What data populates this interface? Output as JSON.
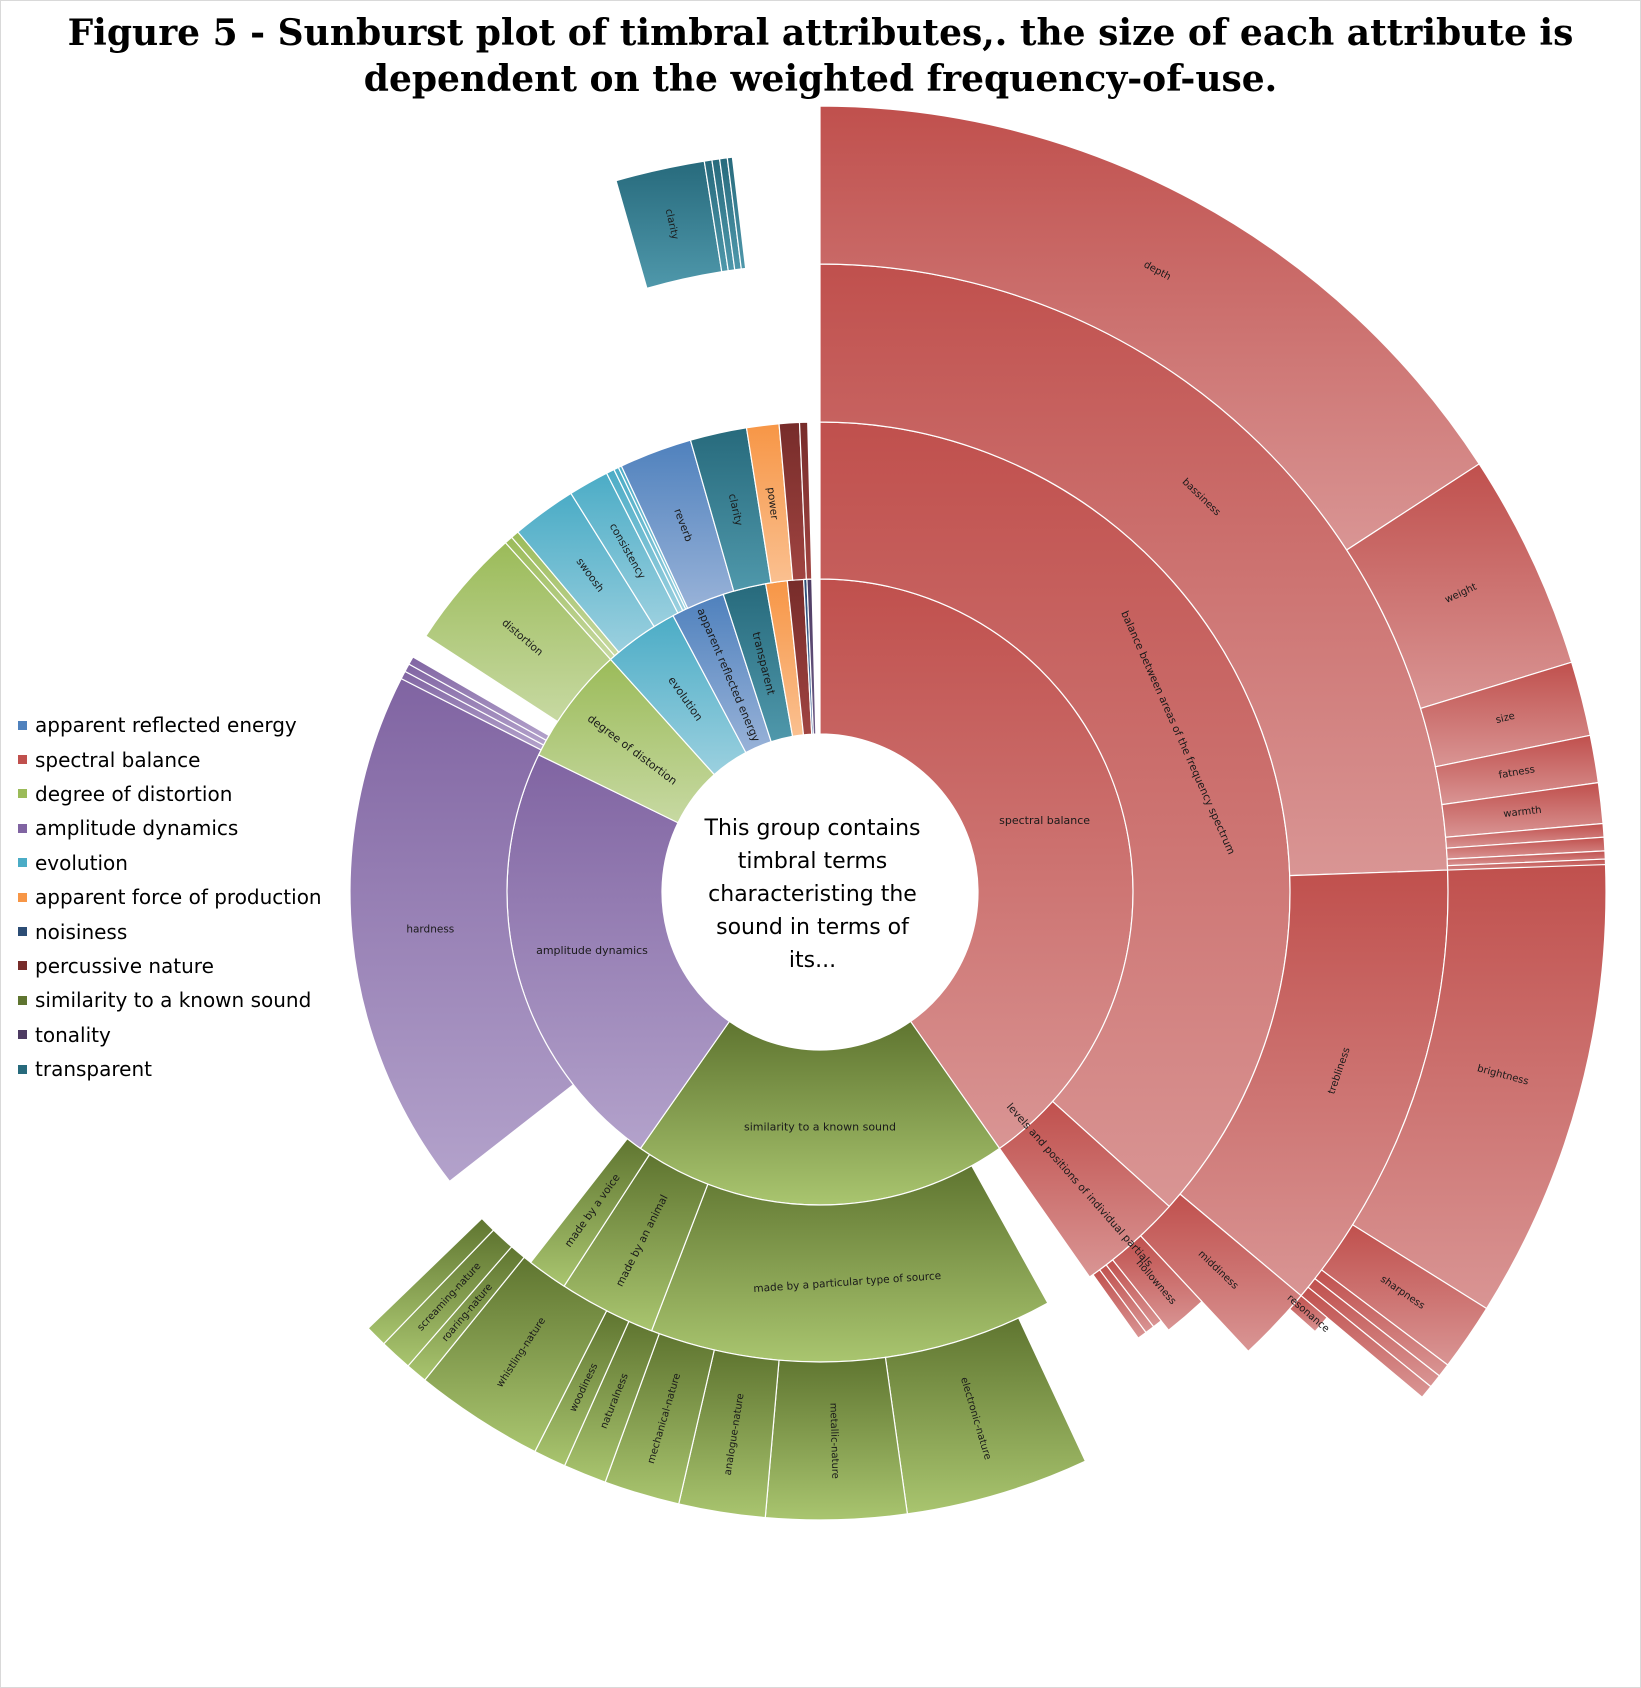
{
  "title": "Figure 5 - Sunburst plot of  timbral attributes,.  the size of each attribute is dependent on the weighted frequency-of-use.",
  "center_text": "This group contains timbral terms characteristing the sound in terms of its...",
  "legend": [
    {
      "label": "apparent reflected energy",
      "color": "#4f81bd"
    },
    {
      "label": "spectral balance",
      "color": "#c0504d"
    },
    {
      "label": "degree of distortion",
      "color": "#9bbb59"
    },
    {
      "label": "amplitude dynamics",
      "color": "#8064a2"
    },
    {
      "label": "evolution",
      "color": "#4bacc6"
    },
    {
      "label": "apparent force of production",
      "color": "#f79646"
    },
    {
      "label": "noisiness",
      "color": "#2c4d75"
    },
    {
      "label": "percussive nature",
      "color": "#772c2a"
    },
    {
      "label": "similarity to a known sound",
      "color": "#5f7530"
    },
    {
      "label": "tonality",
      "color": "#4d3b62"
    },
    {
      "label": "transparent",
      "color": "#276a7c"
    }
  ],
  "chart_data": {
    "type": "sunburst",
    "title": "Figure 5 - Sunburst plot of  timbral attributes,.  the size of each attribute is dependent on the weighted frequency-of-use.",
    "center_label": "This group contains timbral terms characteristing the sound in terms of its...",
    "legend_position": "left",
    "segments": [
      {
        "level": 1,
        "label": "spectral balance",
        "color": "#c0504d",
        "value": 42.4
      },
      {
        "level": 2,
        "label": "balance between areas of the frequency spectrum",
        "parent": "spectral balance",
        "color": "#c0504d",
        "value": 38.9
      },
      {
        "level": 3,
        "label": "bassiness",
        "parent": "balance between areas of the frequency spectrum",
        "color": "#c0504d",
        "value": 25.2
      },
      {
        "level": 4,
        "label": "depth",
        "parent": "bassiness",
        "color": "#c0504d",
        "value": 17.1
      },
      {
        "level": 4,
        "label": "weight",
        "parent": "bassiness",
        "color": "#c0504d",
        "value": 3.7
      },
      {
        "level": 4,
        "label": "size",
        "parent": "bassiness",
        "color": "#c0504d",
        "value": 1.5
      },
      {
        "level": 4,
        "label": "fatness",
        "parent": "bassiness",
        "color": "#c0504d",
        "value": 0.8
      },
      {
        "level": 4,
        "label": "warmth",
        "parent": "bassiness",
        "color": "#c0504d",
        "value": 0.7
      },
      {
        "level": 4,
        "label": "",
        "parent": "bassiness",
        "color": "#c0504d",
        "value": 0.3
      },
      {
        "level": 4,
        "label": "",
        "parent": "bassiness",
        "color": "#c0504d",
        "value": 0.3
      },
      {
        "level": 4,
        "label": "",
        "parent": "bassiness",
        "color": "#c0504d",
        "value": 0.3
      },
      {
        "level": 4,
        "label": "",
        "parent": "bassiness",
        "color": "#c0504d",
        "value": 0.5
      },
      {
        "level": 3,
        "label": "trebliness",
        "parent": "balance between areas of the frequency spectrum",
        "color": "#c0504d",
        "value": 13.7
      },
      {
        "level": 4,
        "label": "brightness",
        "parent": "trebliness",
        "color": "#c0504d",
        "value": 11.2
      },
      {
        "level": 4,
        "label": "sharpness",
        "parent": "trebliness",
        "color": "#c0504d",
        "value": 1.3
      },
      {
        "level": 4,
        "label": "",
        "parent": "trebliness",
        "color": "#c0504d",
        "value": 0.3
      },
      {
        "level": 4,
        "label": "",
        "parent": "trebliness",
        "color": "#c0504d",
        "value": 0.3
      },
      {
        "level": 4,
        "label": "",
        "parent": "trebliness",
        "color": "#c0504d",
        "value": 0.3
      },
      {
        "level": 4,
        "label": "resonance",
        "parent": "trebliness",
        "color": "#c0504d",
        "value": 0.3
      },
      {
        "level": 3,
        "label": "middiness",
        "parent": "balance between areas of the frequency spectrum",
        "color": "#c0504d",
        "value": 1.6
      },
      {
        "level": 3,
        "label": "hollowness",
        "parent": "balance between areas of the frequency spectrum",
        "color": "#c0504d",
        "value": 1.4
      },
      {
        "level": 3,
        "label": "",
        "parent": "balance between areas of the frequency spectrum",
        "color": "#c0504d",
        "value": 0.3
      },
      {
        "level": 3,
        "label": "",
        "parent": "balance between areas of the frequency spectrum",
        "color": "#c0504d",
        "value": 0.3
      },
      {
        "level": 3,
        "label": "",
        "parent": "balance between areas of the frequency spectrum",
        "color": "#c0504d",
        "value": 0.2
      },
      {
        "level": 2,
        "label": "levels and positions of individual partials",
        "parent": "spectral balance",
        "color": "#c0504d",
        "value": 3.5
      },
      {
        "level": 1,
        "label": "similarity to a known sound",
        "parent": null,
        "color": "#5f7530",
        "value": 15.3
      },
      {
        "level": 2,
        "label": "made by a particular type of source",
        "parent": "similarity to a known sound",
        "color": "#5f7530",
        "value": 11.9
      },
      {
        "level": 3,
        "label": "electronic-nature",
        "parent": "made by a particular type of source",
        "color": "#5f7530",
        "value": 4.7
      },
      {
        "level": 3,
        "label": "metallic-nature",
        "parent": "made by a particular type of source",
        "color": "#5f7530",
        "value": 2.7
      },
      {
        "level": 3,
        "label": "analogue-nature",
        "parent": "made by a particular type of source",
        "color": "#5f7530",
        "value": 1.9
      },
      {
        "level": 3,
        "label": "mechanical-nature",
        "parent": "made by a particular type of source",
        "color": "#5f7530",
        "value": 1.3
      },
      {
        "level": 3,
        "label": "naturalness",
        "parent": "made by a particular type of source",
        "color": "#5f7530",
        "value": 0.8
      },
      {
        "level": 3,
        "label": "woodiness",
        "parent": "made by a particular type of source",
        "color": "#5f7530",
        "value": 0.5
      },
      {
        "level": 2,
        "label": "made by an animal",
        "parent": "similarity to a known sound",
        "color": "#5f7530",
        "value": 2.5
      },
      {
        "level": 3,
        "label": "whistling-nature",
        "parent": "made by an animal",
        "color": "#5f7530",
        "value": 2.5
      },
      {
        "level": 2,
        "label": "made by a voice",
        "parent": "similarity to a known sound",
        "color": "#5f7530",
        "value": 0.9
      },
      {
        "level": 3,
        "label": "roaring-nature",
        "parent": "made by a voice",
        "color": "#5f7530",
        "value": 0.3
      },
      {
        "level": 3,
        "label": "screaming-nature",
        "parent": "made by a voice",
        "color": "#5f7530",
        "value": 0.35
      },
      {
        "level": 3,
        "label": "",
        "parent": "made by a voice",
        "color": "#5f7530",
        "value": 0.25
      },
      {
        "level": 1,
        "label": "amplitude dynamics",
        "parent": null,
        "color": "#8064a2",
        "value": 18.3
      },
      {
        "level": 2,
        "label": "hardness",
        "parent": "amplitude dynamics",
        "color": "#8064a2",
        "value": 16.9
      },
      {
        "level": 2,
        "label": "",
        "parent": "amplitude dynamics",
        "color": "#8064a2",
        "value": 0.5
      },
      {
        "level": 2,
        "label": "",
        "parent": "amplitude dynamics",
        "color": "#8064a2",
        "value": 0.5
      },
      {
        "level": 2,
        "label": "",
        "parent": "amplitude dynamics",
        "color": "#8064a2",
        "value": 0.4
      },
      {
        "level": 1,
        "label": "degree of distortion",
        "parent": null,
        "color": "#9bbb59",
        "value": 5.6
      },
      {
        "level": 2,
        "label": "distortion",
        "parent": "degree of distortion",
        "color": "#9bbb59",
        "value": 4.6
      },
      {
        "level": 2,
        "label": "",
        "parent": "degree of distortion",
        "color": "#9bbb59",
        "value": 0.5
      },
      {
        "level": 2,
        "label": "",
        "parent": "degree of distortion",
        "color": "#9bbb59",
        "value": 0.5
      },
      {
        "level": 1,
        "label": "evolution",
        "parent": null,
        "color": "#4bacc6",
        "value": 4.7
      },
      {
        "level": 2,
        "label": "swoosh",
        "parent": "evolution",
        "color": "#4bacc6",
        "value": 2.0
      },
      {
        "level": 2,
        "label": "consistency",
        "parent": "evolution",
        "color": "#4bacc6",
        "value": 1.2
      },
      {
        "level": 2,
        "label": "",
        "parent": "evolution",
        "color": "#4bacc6",
        "value": 0.5
      },
      {
        "level": 2,
        "label": "",
        "parent": "evolution",
        "color": "#4bacc6",
        "value": 0.5
      },
      {
        "level": 2,
        "label": "",
        "parent": "evolution",
        "color": "#4bacc6",
        "value": 0.5
      },
      {
        "level": 1,
        "label": "apparent reflected energy",
        "parent": null,
        "color": "#4f81bd",
        "value": 3.0
      },
      {
        "level": 2,
        "label": "reverb",
        "parent": "apparent reflected energy",
        "color": "#4f81bd",
        "value": 3.0
      },
      {
        "level": 1,
        "label": "transparent",
        "parent": null,
        "color": "#276a7c",
        "value": 3.0
      },
      {
        "level": 2,
        "label": "clarity",
        "parent": "transparent",
        "color": "#276a7c",
        "value": 3.0
      },
      {
        "level": 3,
        "label": "clarity",
        "parent": "clarity",
        "color": "#276a7c",
        "value": 2.0
      },
      {
        "level": 3,
        "label": "",
        "parent": "clarity",
        "color": "#276a7c",
        "value": 0.3
      },
      {
        "level": 3,
        "label": "",
        "parent": "clarity",
        "color": "#276a7c",
        "value": 0.3
      },
      {
        "level": 3,
        "label": "",
        "parent": "clarity",
        "color": "#276a7c",
        "value": 0.2
      },
      {
        "level": 3,
        "label": "",
        "parent": "clarity",
        "color": "#276a7c",
        "value": 0.2
      },
      {
        "level": 1,
        "label": "",
        "parent": null,
        "color": "#f79646",
        "value": 1.4
      },
      {
        "level": 2,
        "label": "power",
        "parent": "apparent force of production",
        "color": "#f79646",
        "value": 1.4
      },
      {
        "level": 1,
        "label": "",
        "parent": null,
        "color": "#772c2a",
        "value": 0.9
      },
      {
        "level": 2,
        "label": "",
        "parent": "percussive nature",
        "color": "#772c2a",
        "value": 0.6
      },
      {
        "level": 2,
        "label": "",
        "parent": "percussive nature",
        "color": "#772c2a",
        "value": 0.3
      },
      {
        "level": 1,
        "label": "",
        "parent": null,
        "color": "#2c4d75",
        "value": 0.2
      },
      {
        "level": 1,
        "label": "",
        "parent": null,
        "color": "#4d3b62",
        "value": 0.4
      }
    ]
  }
}
